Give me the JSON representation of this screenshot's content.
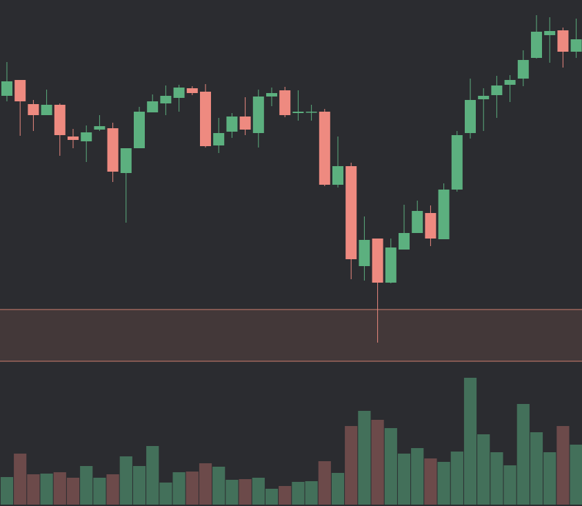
{
  "chart_data": {
    "type": "candlestick",
    "open": [
      595,
      618,
      583,
      567,
      582,
      536,
      529,
      546,
      548,
      483,
      519,
      571,
      584,
      592,
      606,
      601,
      523,
      543,
      565,
      541,
      594,
      603,
      570,
      571,
      572,
      466,
      493,
      348,
      388,
      324,
      372,
      396,
      425,
      387,
      459,
      541,
      590,
      596,
      611,
      620,
      650,
      683,
      690,
      659
    ],
    "high": [
      644,
      618,
      589,
      604,
      584,
      547,
      552,
      567,
      556,
      519,
      579,
      597,
      610,
      611,
      609,
      612,
      563,
      570,
      593,
      604,
      607,
      608,
      603,
      582,
      576,
      536,
      498,
      420,
      388,
      388,
      437,
      443,
      436,
      468,
      544,
      620,
      606,
      624,
      625,
      661,
      712,
      709,
      694,
      707
    ],
    "low": [
      587,
      537,
      544,
      567,
      508,
      519,
      499,
      544,
      470,
      411,
      519,
      571,
      567,
      572,
      596,
      520,
      512,
      534,
      538,
      520,
      580,
      564,
      559,
      559,
      464,
      462,
      329,
      327,
      237,
      323,
      372,
      396,
      377,
      387,
      456,
      533,
      544,
      563,
      586,
      609,
      649,
      643,
      636,
      650
    ],
    "close": [
      616,
      587,
      567,
      582,
      538,
      531,
      542,
      551,
      485,
      519,
      572,
      587,
      595,
      607,
      599,
      522,
      541,
      565,
      546,
      594,
      599,
      567,
      572,
      572,
      466,
      493,
      358,
      386,
      324,
      375,
      396,
      428,
      388,
      459,
      538,
      589,
      595,
      610,
      618,
      647,
      688,
      689,
      659,
      677
    ],
    "volume": [
      40,
      74,
      44,
      45,
      47,
      39,
      56,
      39,
      44,
      70,
      56,
      85,
      32,
      47,
      48,
      60,
      55,
      36,
      37,
      39,
      23,
      27,
      33,
      34,
      63,
      46,
      114,
      136,
      123,
      111,
      74,
      82,
      67,
      62,
      77,
      184,
      102,
      76,
      57,
      146,
      105,
      76,
      114,
      87
    ],
    "ylim": [
      0,
      734
    ],
    "volume_ylim": [
      0,
      732
    ],
    "zone": [
      210,
      285
    ],
    "up_color": "#5cb07f",
    "down_color": "#ee8a80",
    "up_volume_color": "#43705a",
    "down_volume_color": "#6c4a4a",
    "zone_color": "#d08070"
  }
}
